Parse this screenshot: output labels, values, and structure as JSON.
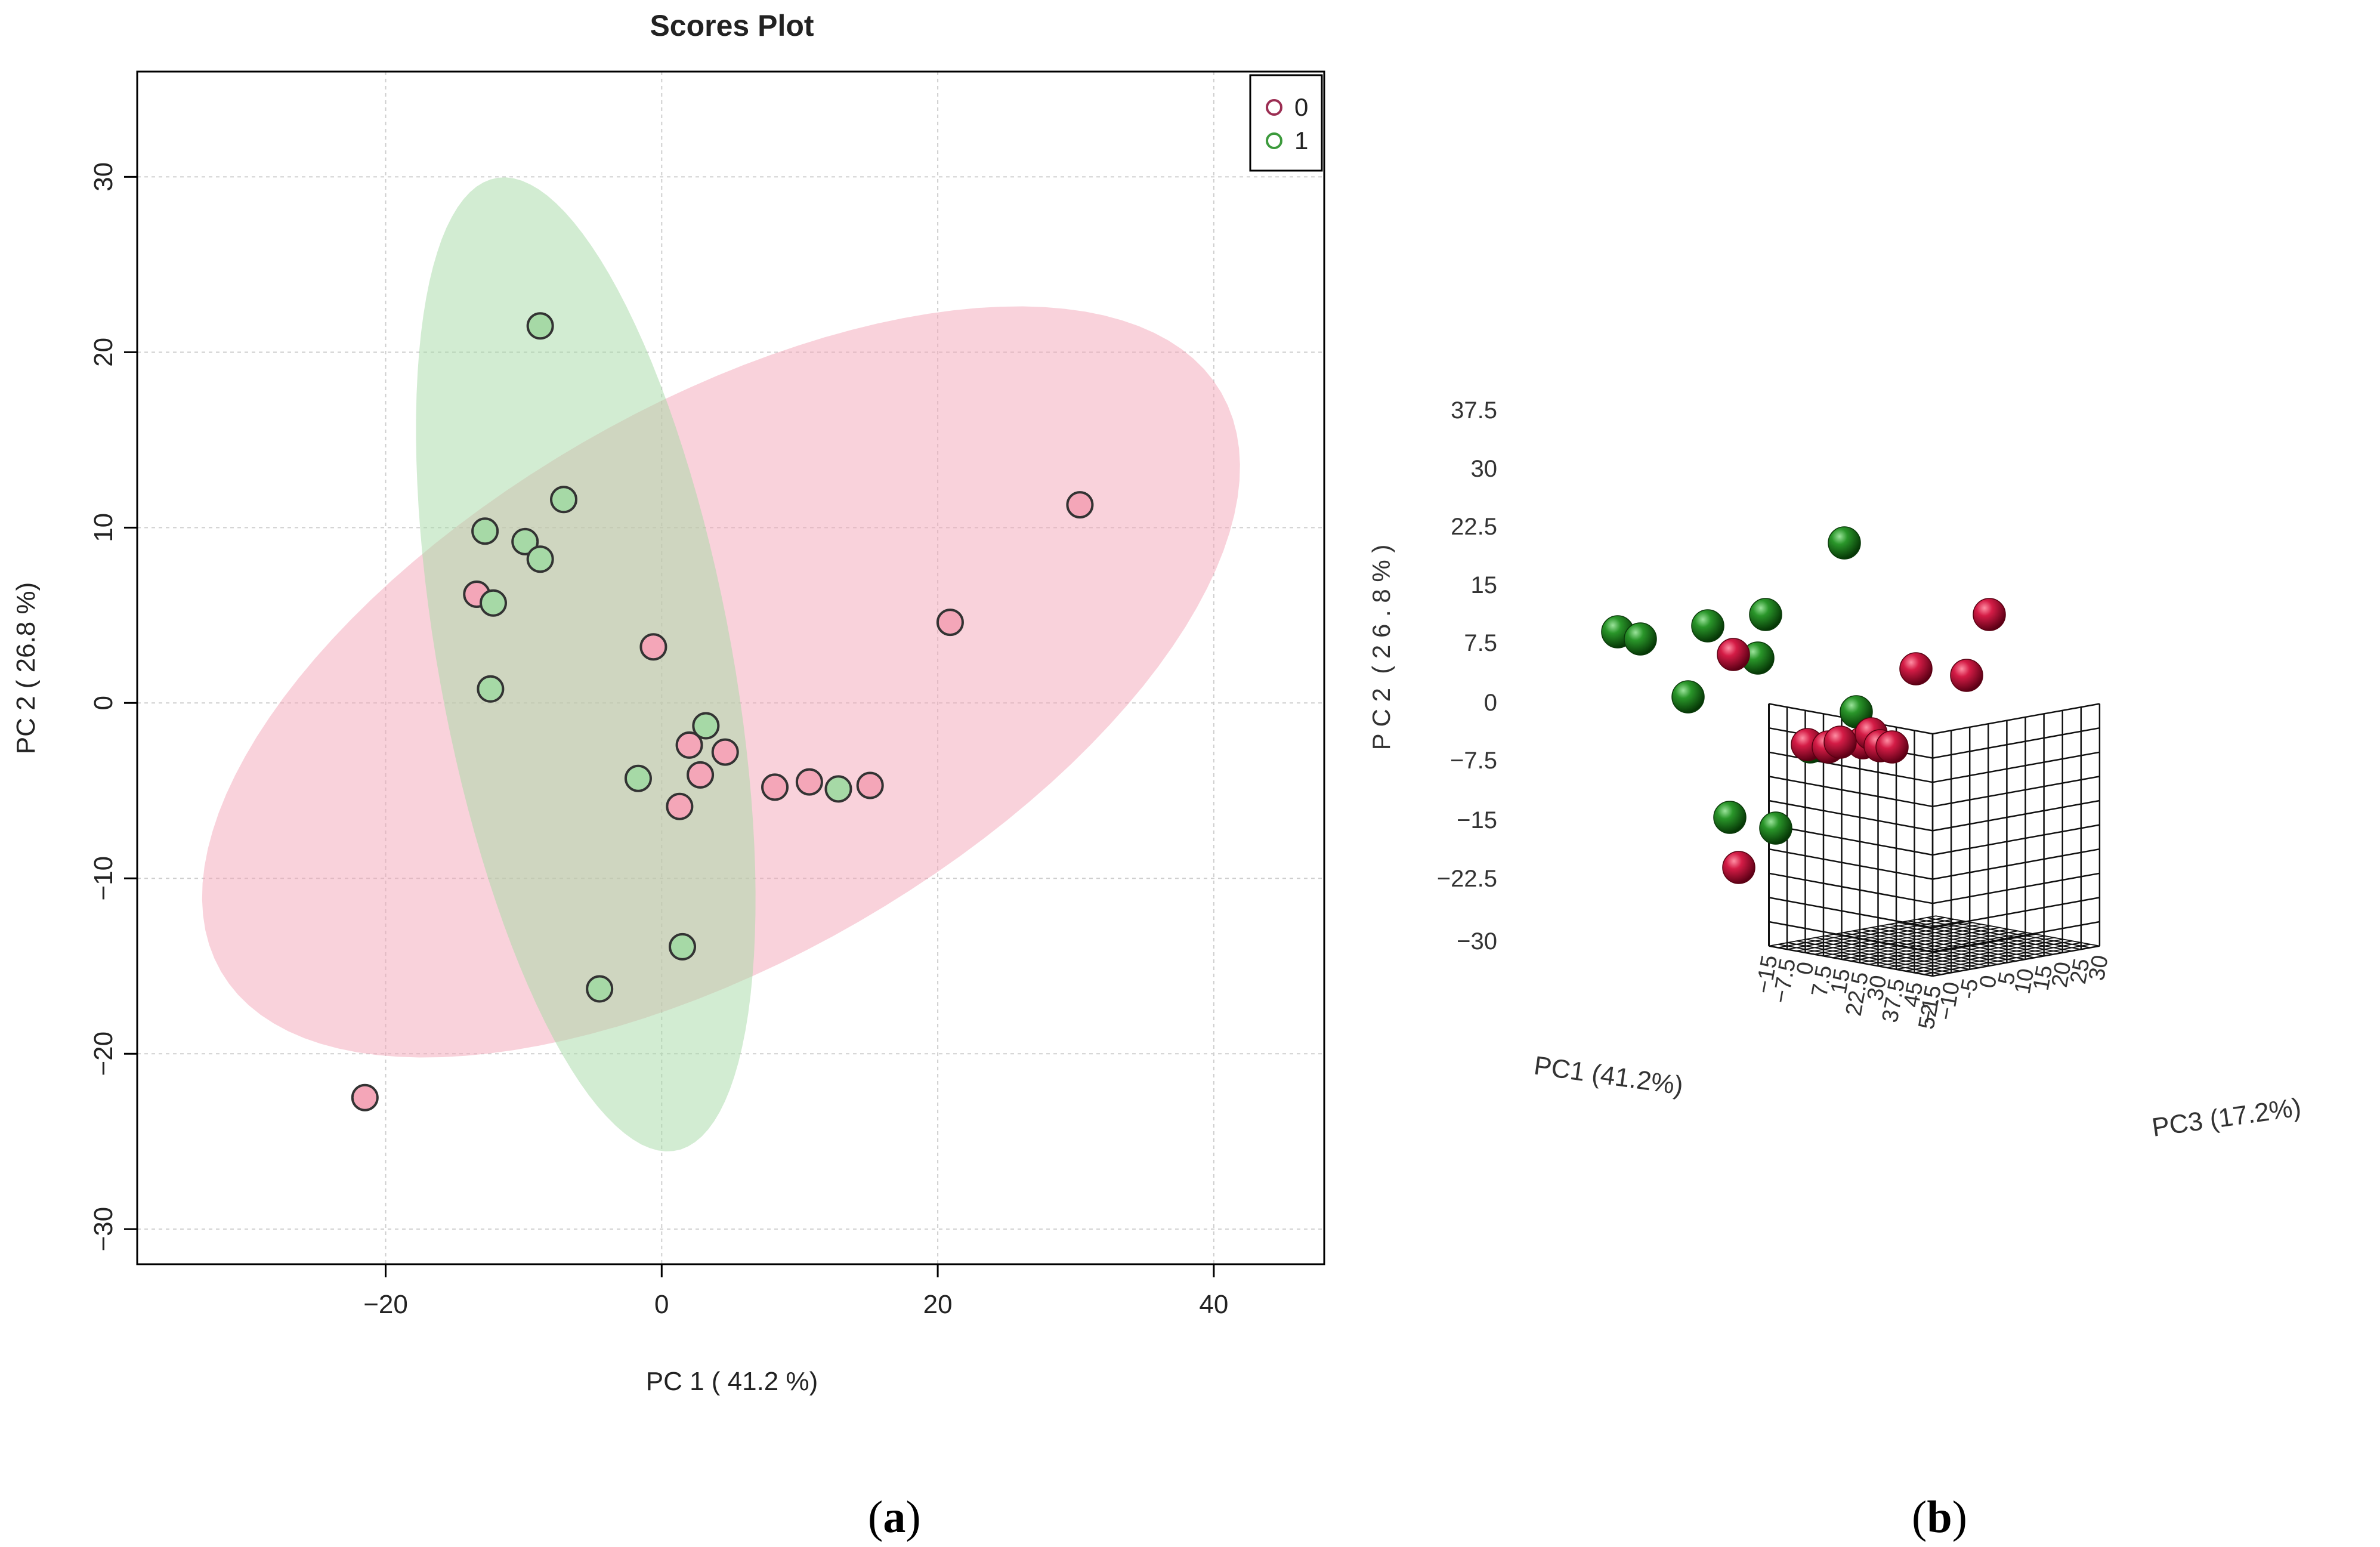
{
  "chart_data": [
    {
      "panel": "a",
      "type": "scatter",
      "title": "Scores Plot",
      "xlabel": "PC 1 ( 41.2 %)",
      "ylabel": "PC 2 ( 26.8 %)",
      "xlim": [
        -38,
        48
      ],
      "ylim": [
        -32,
        36
      ],
      "xticks": [
        -20,
        0,
        20,
        40
      ],
      "yticks": [
        -30,
        -20,
        -10,
        0,
        10,
        20,
        30
      ],
      "xtick_labels": [
        "−20",
        "0",
        "20",
        "40"
      ],
      "ytick_labels": [
        "−30",
        "−20",
        "−10",
        "0",
        "10",
        "20",
        "30"
      ],
      "grid": true,
      "legend_position": "top-right",
      "series": [
        {
          "name": "0",
          "color": "#f4a6b8",
          "marker_outline": "#9b2d52",
          "ellipse": {
            "cx": 4.3,
            "cy": 1.2,
            "rx": 40,
            "ry": 16.5,
            "angle_deg": 22
          },
          "points": [
            [
              30.3,
              11.3
            ],
            [
              20.9,
              4.6
            ],
            [
              -0.6,
              3.2
            ],
            [
              -13.4,
              6.2
            ],
            [
              2.0,
              -2.4
            ],
            [
              4.6,
              -2.8
            ],
            [
              2.8,
              -4.1
            ],
            [
              1.3,
              -5.9
            ],
            [
              8.2,
              -4.8
            ],
            [
              10.7,
              -4.5
            ],
            [
              15.1,
              -4.7
            ],
            [
              -21.5,
              -22.5
            ]
          ]
        },
        {
          "name": "1",
          "color": "#a6d9a6",
          "marker_outline": "#3c9a3c",
          "ellipse": {
            "cx": -5.5,
            "cy": 2.2,
            "rx": 28.5,
            "ry": 10.5,
            "angle_deg": -76
          },
          "points": [
            [
              -8.8,
              21.5
            ],
            [
              -7.1,
              11.6
            ],
            [
              -12.8,
              9.8
            ],
            [
              -9.9,
              9.2
            ],
            [
              -8.8,
              8.2
            ],
            [
              -12.2,
              5.7
            ],
            [
              -12.4,
              0.8
            ],
            [
              3.2,
              -1.3
            ],
            [
              -1.7,
              -4.3
            ],
            [
              12.8,
              -4.9
            ],
            [
              1.5,
              -13.9
            ],
            [
              -4.5,
              -16.3
            ]
          ]
        }
      ]
    },
    {
      "panel": "b",
      "type": "scatter",
      "title": "",
      "xlabel": "PC1 (41.2%)",
      "ylabel": "P C 2  ( 2 6 . 8 % )",
      "zlabel": "PC3 (17.2%)",
      "ytick_labels": [
        "37.5",
        "30",
        "22.5",
        "15",
        "7.5",
        "0",
        "−7.5",
        "−15",
        "−22.5",
        "−30"
      ],
      "xtick_labels": [
        "−15",
        "−7.5",
        "0",
        "7.5",
        "15",
        "22.5",
        "30",
        "37.5",
        "45",
        "52.5"
      ],
      "ztick_labels": [
        "−15",
        "−10",
        "-5",
        "0",
        "5",
        "10",
        "15",
        "20",
        "25",
        "30"
      ],
      "series": [
        {
          "name": "0",
          "color": "#c8143c"
        },
        {
          "name": "1",
          "color": "#1e8a1e"
        }
      ]
    }
  ],
  "labels": {
    "a": "a",
    "b": "b"
  }
}
